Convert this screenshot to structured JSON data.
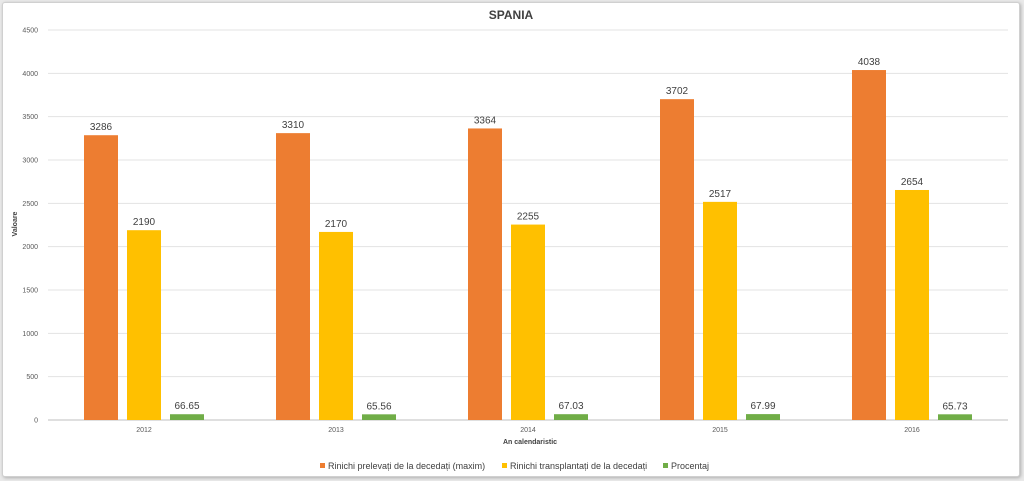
{
  "chart_data": {
    "type": "bar",
    "title": "SPANIA",
    "xlabel": "An calendaristic",
    "ylabel": "Valoare",
    "categories": [
      "2012",
      "2013",
      "2014",
      "2015",
      "2016"
    ],
    "ylim": [
      0,
      4500
    ],
    "yticks": [
      0,
      500,
      1000,
      1500,
      2000,
      2500,
      3000,
      3500,
      4000,
      4500
    ],
    "grid": true,
    "legend_position": "bottom",
    "series": [
      {
        "name": "Rinichi prelevați de la decedați (maxim)",
        "color": "#ED7D31",
        "values": [
          3286,
          3310,
          3364,
          3702,
          4038
        ]
      },
      {
        "name": "Rinichi transplantați de la decedați",
        "color": "#FFC000",
        "values": [
          2190,
          2170,
          2255,
          2517,
          2654
        ]
      },
      {
        "name": "Procentaj",
        "color": "#70AD47",
        "values": [
          66.65,
          65.56,
          67.03,
          67.99,
          65.73
        ]
      }
    ]
  }
}
